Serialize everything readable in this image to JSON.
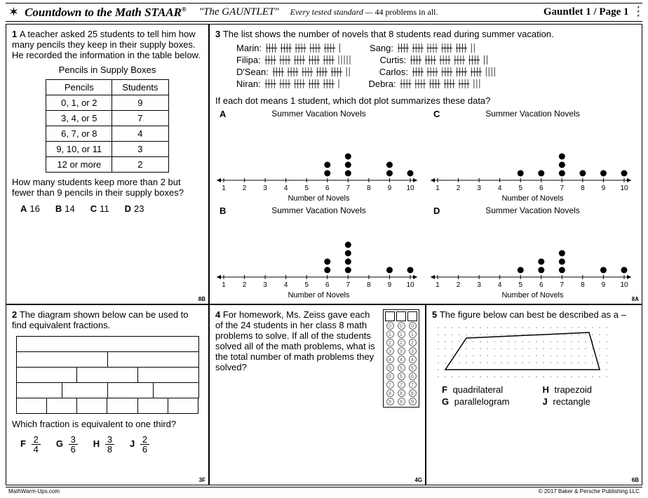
{
  "header": {
    "title_main": "Countdown to the Math STAAR",
    "reg": "®",
    "title_sub": "\"The GAUNTLET\"",
    "tagline_a": "Every tested standard —",
    "tagline_b": "44 problems in all.",
    "page_label": "Gauntlet 1 / Page 1"
  },
  "q1": {
    "num": "1",
    "text": "A teacher asked 25 students to tell him how many pencils they keep in their supply boxes. He recorded the information in the table below.",
    "table_title": "Pencils in Supply Boxes",
    "col1": "Pencils",
    "col2": "Students",
    "rows": [
      [
        "0, 1, or 2",
        "9"
      ],
      [
        "3, 4, or 5",
        "7"
      ],
      [
        "6, 7, or 8",
        "4"
      ],
      [
        "9, 10, or 11",
        "3"
      ],
      [
        "12 or more",
        "2"
      ]
    ],
    "question": "How many students keep more than 2 but fewer than 9 pencils in their supply boxes?",
    "choices": [
      [
        "A",
        "16"
      ],
      [
        "B",
        "14"
      ],
      [
        "C",
        "11"
      ],
      [
        "D",
        "23"
      ]
    ],
    "std": "8B"
  },
  "q2": {
    "num": "2",
    "text": "The diagram shown below can be used to find equivalent fractions.",
    "brick_rows": [
      1,
      2,
      3,
      4,
      6
    ],
    "question": "Which fraction is equivalent to one third?",
    "choices": [
      [
        "F",
        "2",
        "4"
      ],
      [
        "G",
        "3",
        "6"
      ],
      [
        "H",
        "3",
        "8"
      ],
      [
        "J",
        "2",
        "6"
      ]
    ],
    "std": "3F"
  },
  "q3": {
    "num": "3",
    "text": "The list shows the number of novels that 8 students read during summer vacation.",
    "students": [
      [
        "Marin:",
        "5-1"
      ],
      [
        "Sang:",
        "5-2"
      ],
      [
        "Filipa:",
        "5-5"
      ],
      [
        "Curtis:",
        "5-2"
      ],
      [
        "D'Sean:",
        "5-2"
      ],
      [
        "Carlos:",
        "5-4"
      ],
      [
        "Niran:",
        "5-1"
      ],
      [
        "Debra:",
        "5-3"
      ]
    ],
    "prompt": "If each dot means 1 student, which dot plot summarizes these data?",
    "dp_title": "Summer Vacation Novels",
    "dp_axis": "Number of Novels",
    "ticks": [
      "1",
      "2",
      "3",
      "4",
      "5",
      "6",
      "7",
      "8",
      "9",
      "10"
    ],
    "plots": {
      "A": {
        "6": 2,
        "7": 3,
        "9": 2,
        "10": 1
      },
      "C": {
        "5": 1,
        "6": 1,
        "7": 3,
        "8": 1,
        "9": 1,
        "10": 1
      },
      "B": {
        "6": 2,
        "7": 4,
        "9": 1,
        "10": 1
      },
      "D": {
        "5": 1,
        "6": 2,
        "7": 3,
        "9": 1,
        "10": 1
      }
    },
    "std": "8A"
  },
  "q4": {
    "num": "4",
    "text": "For homework, Ms. Zeiss gave each of the 24 students in her class 8 math problems to solve. If all of the students solved all of the math problems, what is the total number of math problems they solved?",
    "std": "4G"
  },
  "q5": {
    "num": "5",
    "text": "The figure below can best be described as a –",
    "choices": [
      [
        "F",
        "quadrilateral"
      ],
      [
        "H",
        "trapezoid"
      ],
      [
        "G",
        "parallelogram"
      ],
      [
        "J",
        "rectangle"
      ]
    ],
    "std": "6B"
  },
  "footer": {
    "left": "MathWarm-Ups.com",
    "right": "© 2017 Baker & Persche Publishing LLC"
  }
}
